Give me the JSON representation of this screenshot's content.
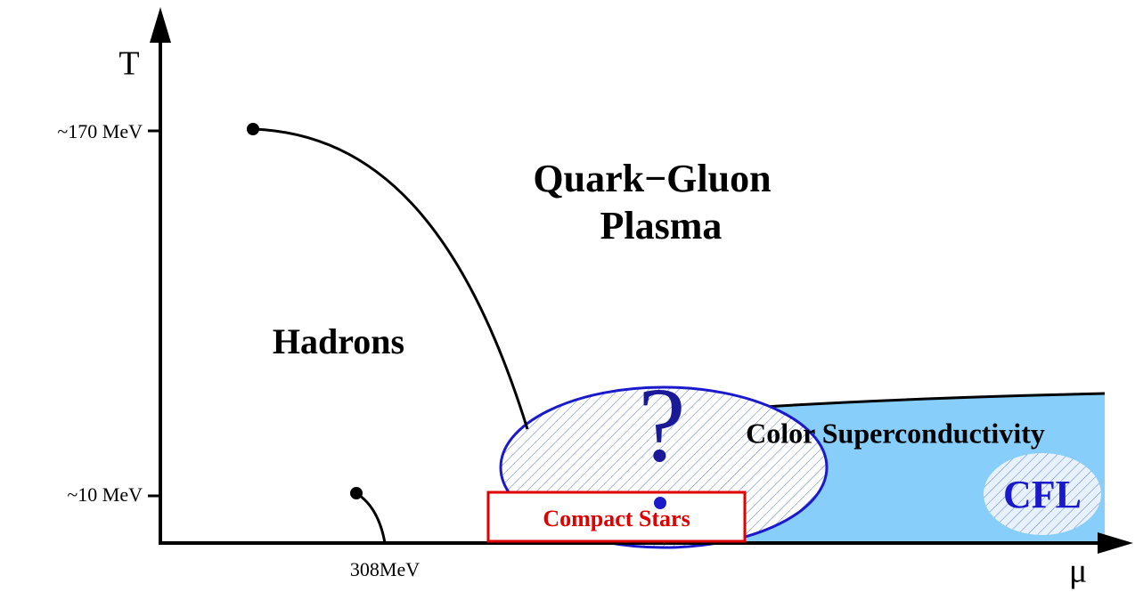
{
  "axes": {
    "y_label": "T",
    "x_label": "μ",
    "y_ticks": [
      "~170 MeV",
      "~10 MeV"
    ],
    "x_ticks": [
      "308MeV"
    ]
  },
  "regions": {
    "qgp": [
      "Quark−Gluon",
      "Plasma"
    ],
    "hadrons": "Hadrons",
    "csc": "Color Superconductivity",
    "cfl": "CFL",
    "compact_stars": "Compact Stars",
    "question": "?"
  }
}
